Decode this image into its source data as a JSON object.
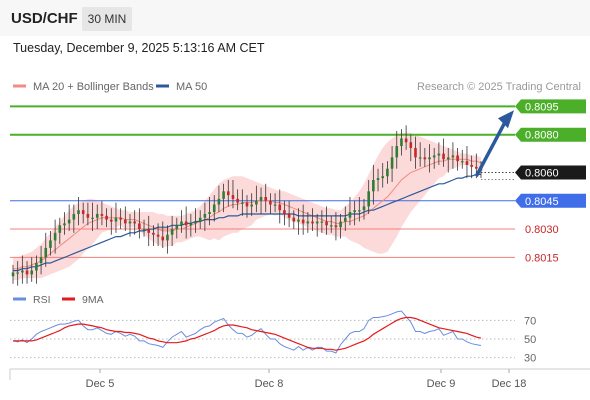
{
  "header": {
    "pair": "USD/CHF",
    "timeframe": "30 MIN",
    "datetime": "Tuesday, December 9, 2025 5:13:16 AM CET"
  },
  "colors": {
    "ma20": "#f28b82",
    "ma50": "#2b5a9c",
    "rsi": "#6a8de0",
    "ma9": "#e41a1c",
    "bullish": "#2e7d32",
    "bearish": "#c62828",
    "resistance": "#4caf2a",
    "support": "#3f6ee8",
    "red_level": "#f08080",
    "projection": "#2b5a9c"
  },
  "chart_data": [
    {
      "type": "candlestick",
      "legend": [
        {
          "name": "MA 20 + Bollinger Bands",
          "color": "#f28b82"
        },
        {
          "name": "MA 50",
          "color": "#2b5a9c"
        }
      ],
      "credit": "Research © 2025 Trading Central",
      "x_ticks": [
        "Dec 5",
        "Dec 8",
        "Dec 9",
        "Dec 18"
      ],
      "y_range": [
        0.8003,
        0.81
      ],
      "levels": [
        {
          "value": 0.8095,
          "label": "0.8095",
          "kind": "resistance",
          "style": "box"
        },
        {
          "value": 0.808,
          "label": "0.8080",
          "kind": "resistance",
          "style": "box"
        },
        {
          "value": 0.806,
          "label": "0.8060",
          "kind": "current",
          "style": "box"
        },
        {
          "value": 0.8045,
          "label": "0.8045",
          "kind": "support",
          "style": "box"
        },
        {
          "value": 0.803,
          "label": "0.8030",
          "kind": "red",
          "style": "text"
        },
        {
          "value": 0.8015,
          "label": "0.8015",
          "kind": "red",
          "style": "text"
        }
      ],
      "projection": {
        "from_bar": 99,
        "from_value": 0.8058,
        "to_value": 0.8093
      },
      "close": [
        0.8007,
        0.8007,
        0.8008,
        0.8006,
        0.8008,
        0.8012,
        0.8015,
        0.802,
        0.8024,
        0.8028,
        0.8032,
        0.8033,
        0.8035,
        0.8038,
        0.804,
        0.8038,
        0.8036,
        0.8036,
        0.8038,
        0.8037,
        0.8035,
        0.8034,
        0.8036,
        0.8035,
        0.8033,
        0.8034,
        0.8033,
        0.803,
        0.803,
        0.8028,
        0.8027,
        0.8026,
        0.8024,
        0.8027,
        0.803,
        0.8032,
        0.8034,
        0.8032,
        0.8033,
        0.8034,
        0.8036,
        0.8038,
        0.8039,
        0.8043,
        0.8046,
        0.805,
        0.8048,
        0.8046,
        0.8044,
        0.8044,
        0.8042,
        0.8043,
        0.8045,
        0.8047,
        0.8045,
        0.8043,
        0.8043,
        0.804,
        0.8038,
        0.8036,
        0.8034,
        0.8035,
        0.8033,
        0.8034,
        0.8033,
        0.8034,
        0.8034,
        0.8032,
        0.8032,
        0.8031,
        0.8034,
        0.8036,
        0.8039,
        0.804,
        0.804,
        0.8042,
        0.805,
        0.8056,
        0.8057,
        0.8058,
        0.8062,
        0.8068,
        0.8074,
        0.8078,
        0.8076,
        0.8073,
        0.8068,
        0.8068,
        0.8067,
        0.8068,
        0.8069,
        0.807,
        0.8067,
        0.8068,
        0.8069,
        0.8066,
        0.8066,
        0.8064,
        0.8063,
        0.8062,
        0.8061
      ],
      "ma20": [
        0.8009,
        0.8009,
        0.801,
        0.801,
        0.8011,
        0.8012,
        0.8013,
        0.8015,
        0.8017,
        0.8019,
        0.8021,
        0.8023,
        0.8025,
        0.8027,
        0.8029,
        0.8031,
        0.8033,
        0.8034,
        0.8035,
        0.8036,
        0.8036,
        0.8036,
        0.8036,
        0.8036,
        0.8035,
        0.8035,
        0.8035,
        0.8034,
        0.8033,
        0.8032,
        0.8031,
        0.803,
        0.8029,
        0.8029,
        0.8029,
        0.803,
        0.803,
        0.8031,
        0.8032,
        0.8033,
        0.8034,
        0.8035,
        0.8036,
        0.8038,
        0.8039,
        0.8041,
        0.8042,
        0.8043,
        0.8043,
        0.8044,
        0.8044,
        0.8044,
        0.8045,
        0.8045,
        0.8045,
        0.8045,
        0.8044,
        0.8044,
        0.8043,
        0.8042,
        0.8041,
        0.804,
        0.8039,
        0.8038,
        0.8037,
        0.8036,
        0.8035,
        0.8034,
        0.8034,
        0.8033,
        0.8033,
        0.8034,
        0.8034,
        0.8035,
        0.8036,
        0.8037,
        0.8039,
        0.8041,
        0.8043,
        0.8045,
        0.8047,
        0.805,
        0.8053,
        0.8056,
        0.8058,
        0.806,
        0.8061,
        0.8062,
        0.8063,
        0.8064,
        0.8065,
        0.8066,
        0.8066,
        0.8067,
        0.8067,
        0.8067,
        0.8067,
        0.8067,
        0.8066,
        0.8066,
        0.8065
      ],
      "bb_upper": [
        0.8015,
        0.8015,
        0.8016,
        0.8017,
        0.8018,
        0.802,
        0.8022,
        0.8025,
        0.8028,
        0.8031,
        0.8034,
        0.8037,
        0.804,
        0.8042,
        0.8044,
        0.8045,
        0.8046,
        0.8046,
        0.8045,
        0.8044,
        0.8043,
        0.8042,
        0.8041,
        0.804,
        0.804,
        0.8039,
        0.8039,
        0.8039,
        0.8039,
        0.8039,
        0.8039,
        0.8038,
        0.8038,
        0.8037,
        0.8037,
        0.8037,
        0.8037,
        0.8038,
        0.8039,
        0.804,
        0.8042,
        0.8045,
        0.8048,
        0.8051,
        0.8054,
        0.8056,
        0.8057,
        0.8058,
        0.8058,
        0.8058,
        0.8057,
        0.8056,
        0.8055,
        0.8054,
        0.8053,
        0.8052,
        0.8051,
        0.805,
        0.805,
        0.8049,
        0.8048,
        0.8047,
        0.8046,
        0.8045,
        0.8044,
        0.8043,
        0.8042,
        0.8041,
        0.8041,
        0.804,
        0.804,
        0.8042,
        0.8044,
        0.8047,
        0.805,
        0.8054,
        0.8059,
        0.8064,
        0.8069,
        0.8073,
        0.8076,
        0.8078,
        0.808,
        0.8081,
        0.8081,
        0.8081,
        0.808,
        0.8079,
        0.8078,
        0.8077,
        0.8076,
        0.8075,
        0.8074,
        0.8073,
        0.8072,
        0.8071,
        0.807,
        0.807,
        0.8069,
        0.8069,
        0.8068
      ],
      "bb_lower": [
        0.8003,
        0.8003,
        0.8004,
        0.8004,
        0.8004,
        0.8004,
        0.8004,
        0.8005,
        0.8006,
        0.8007,
        0.8008,
        0.8009,
        0.801,
        0.8012,
        0.8014,
        0.8017,
        0.802,
        0.8022,
        0.8025,
        0.8028,
        0.8029,
        0.803,
        0.8031,
        0.8032,
        0.803,
        0.8031,
        0.8031,
        0.8029,
        0.8027,
        0.8025,
        0.8023,
        0.8022,
        0.802,
        0.8021,
        0.8021,
        0.8023,
        0.8023,
        0.8024,
        0.8025,
        0.8026,
        0.8026,
        0.8025,
        0.8024,
        0.8025,
        0.8024,
        0.8026,
        0.8027,
        0.8028,
        0.8028,
        0.803,
        0.8031,
        0.8032,
        0.8035,
        0.8036,
        0.8037,
        0.8038,
        0.8037,
        0.8038,
        0.8036,
        0.8035,
        0.8034,
        0.8033,
        0.8032,
        0.8031,
        0.803,
        0.8029,
        0.8028,
        0.8027,
        0.8027,
        0.8026,
        0.8026,
        0.8026,
        0.8024,
        0.8023,
        0.8022,
        0.802,
        0.8019,
        0.8018,
        0.8017,
        0.8017,
        0.8018,
        0.8022,
        0.8026,
        0.8031,
        0.8035,
        0.8039,
        0.8042,
        0.8045,
        0.8048,
        0.8051,
        0.8054,
        0.8057,
        0.8058,
        0.8061,
        0.8062,
        0.8063,
        0.8064,
        0.8064,
        0.8063,
        0.8063,
        0.8062
      ],
      "ma50": [
        0.8008,
        0.8008,
        0.8009,
        0.8009,
        0.801,
        0.801,
        0.8011,
        0.8012,
        0.8012,
        0.8013,
        0.8014,
        0.8015,
        0.8016,
        0.8017,
        0.8018,
        0.8019,
        0.802,
        0.8021,
        0.8022,
        0.8023,
        0.8024,
        0.8025,
        0.8026,
        0.8026,
        0.8027,
        0.8028,
        0.8028,
        0.8029,
        0.8029,
        0.803,
        0.803,
        0.8031,
        0.8031,
        0.8031,
        0.8032,
        0.8032,
        0.8032,
        0.8033,
        0.8033,
        0.8034,
        0.8034,
        0.8035,
        0.8035,
        0.8035,
        0.8036,
        0.8036,
        0.8037,
        0.8037,
        0.8037,
        0.8038,
        0.8038,
        0.8038,
        0.8038,
        0.8038,
        0.8038,
        0.8038,
        0.8038,
        0.8038,
        0.8038,
        0.8038,
        0.8038,
        0.8037,
        0.8037,
        0.8037,
        0.8037,
        0.8037,
        0.8037,
        0.8037,
        0.8037,
        0.8037,
        0.8037,
        0.8037,
        0.8038,
        0.8038,
        0.8038,
        0.8039,
        0.804,
        0.804,
        0.8041,
        0.8042,
        0.8043,
        0.8044,
        0.8045,
        0.8046,
        0.8047,
        0.8048,
        0.8049,
        0.805,
        0.8051,
        0.8052,
        0.8053,
        0.8054,
        0.8054,
        0.8055,
        0.8056,
        0.8057,
        0.8057,
        0.8058,
        0.8058,
        0.8059,
        0.8059
      ]
    },
    {
      "type": "line",
      "legend": [
        {
          "name": "RSI",
          "color": "#6a8de0"
        },
        {
          "name": "9MA",
          "color": "#e41a1c"
        }
      ],
      "y_range": [
        20,
        80
      ],
      "y_ticks": [
        70,
        50,
        30
      ],
      "rsi": [
        48,
        47,
        49,
        46,
        50,
        55,
        58,
        60,
        62,
        64,
        66,
        66,
        67,
        69,
        70,
        64,
        60,
        60,
        62,
        59,
        56,
        55,
        58,
        56,
        53,
        55,
        53,
        48,
        48,
        45,
        44,
        43,
        41,
        47,
        52,
        55,
        58,
        52,
        54,
        56,
        60,
        63,
        64,
        68,
        70,
        72,
        65,
        60,
        56,
        56,
        52,
        54,
        58,
        61,
        55,
        50,
        50,
        45,
        42,
        40,
        38,
        42,
        38,
        41,
        38,
        41,
        41,
        37,
        37,
        35,
        44,
        50,
        56,
        58,
        58,
        61,
        70,
        73,
        73,
        74,
        75,
        77,
        79,
        80,
        74,
        68,
        58,
        58,
        56,
        58,
        59,
        61,
        54,
        56,
        58,
        50,
        50,
        47,
        45,
        44,
        43
      ],
      "ma9": [
        48,
        48,
        48,
        48,
        48,
        49,
        51,
        53,
        55,
        57,
        59,
        62,
        64,
        65,
        66,
        66,
        65,
        64,
        63,
        62,
        60,
        59,
        58,
        58,
        57,
        57,
        56,
        55,
        53,
        51,
        50,
        48,
        47,
        46,
        46,
        46,
        47,
        48,
        50,
        51,
        53,
        55,
        57,
        59,
        62,
        64,
        65,
        65,
        64,
        63,
        62,
        60,
        59,
        58,
        57,
        56,
        55,
        53,
        51,
        49,
        47,
        45,
        43,
        41,
        40,
        40,
        40,
        39,
        39,
        38,
        39,
        40,
        42,
        44,
        46,
        48,
        51,
        55,
        58,
        61,
        64,
        67,
        70,
        72,
        73,
        73,
        72,
        70,
        68,
        66,
        64,
        62,
        61,
        60,
        59,
        58,
        57,
        56,
        54,
        52,
        51
      ]
    }
  ]
}
